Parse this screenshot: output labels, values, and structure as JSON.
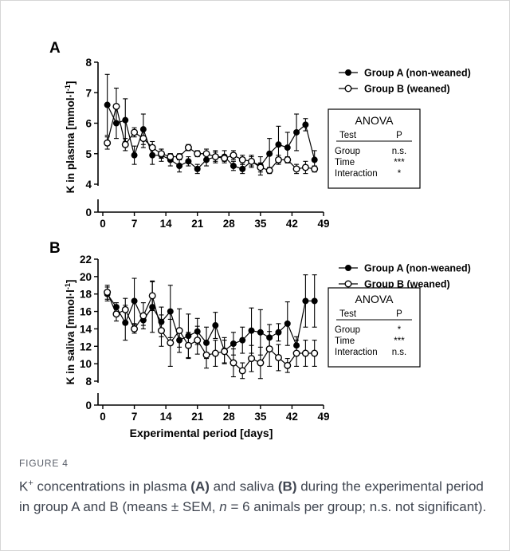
{
  "figure": {
    "label": "FIGURE 4",
    "caption_parts": {
      "k": "K",
      "sup": "+",
      "p1": " concentrations in plasma ",
      "a": "(A)",
      "p2": " and saliva ",
      "b": "(B)",
      "p3": " during the experimental period in group A and B (means ± SEM, ",
      "n": "n",
      "p4": " = 6 animals per group; n.s. not significant)."
    }
  },
  "chart_data": [
    {
      "panel_label": "A",
      "type": "line",
      "ylabel": "K in plasma [mmol·l⁻¹]",
      "ylabel_parts": [
        "K in plasma [mmol·l",
        "-1",
        "]"
      ],
      "xlabel": "",
      "xticks": [
        0,
        7,
        14,
        21,
        28,
        35,
        42,
        49
      ],
      "yticks": [
        0,
        4,
        5,
        6,
        7,
        8
      ],
      "xlim": [
        0,
        49
      ],
      "ylim_break": [
        0,
        4
      ],
      "ylim_upper": [
        4,
        8
      ],
      "axis_break": true,
      "legend": {
        "position": "top-right"
      },
      "series": [
        {
          "name": "Group A (non-weaned)",
          "marker": "filled-circle",
          "x": [
            1,
            3,
            5,
            7,
            9,
            11,
            13,
            15,
            17,
            19,
            21,
            23,
            25,
            27,
            29,
            31,
            33,
            35,
            37,
            39,
            41,
            43,
            45,
            47
          ],
          "y": [
            6.6,
            6.0,
            6.1,
            4.95,
            5.8,
            4.95,
            4.95,
            4.8,
            4.6,
            4.75,
            4.5,
            4.8,
            4.9,
            4.9,
            4.6,
            4.5,
            4.75,
            4.6,
            5.0,
            5.3,
            5.2,
            5.7,
            5.95,
            4.8
          ],
          "err": [
            1.0,
            0.5,
            0.7,
            0.3,
            0.5,
            0.3,
            0.2,
            0.2,
            0.2,
            0.15,
            0.15,
            0.2,
            0.2,
            0.2,
            0.15,
            0.15,
            0.2,
            0.3,
            0.5,
            0.6,
            0.5,
            0.6,
            0.2,
            0.3
          ]
        },
        {
          "name": "Group B (weaned)",
          "marker": "open-circle",
          "x": [
            1,
            3,
            5,
            7,
            9,
            11,
            13,
            15,
            17,
            19,
            21,
            23,
            25,
            27,
            29,
            31,
            33,
            35,
            37,
            39,
            41,
            43,
            45,
            47
          ],
          "y": [
            5.35,
            6.55,
            5.3,
            5.7,
            5.5,
            5.2,
            5.0,
            4.9,
            4.9,
            5.2,
            5.0,
            5.0,
            4.9,
            4.85,
            4.95,
            4.8,
            4.75,
            4.55,
            4.45,
            4.8,
            4.8,
            4.5,
            4.55,
            4.5
          ],
          "err": [
            0.2,
            0.6,
            0.2,
            0.15,
            0.3,
            0.2,
            0.15,
            0.1,
            0.1,
            0.1,
            0.1,
            0.15,
            0.15,
            0.1,
            0.15,
            0.15,
            0.15,
            0.15,
            0.1,
            0.15,
            0.1,
            0.15,
            0.2,
            0.1
          ]
        }
      ],
      "anova": {
        "title": "ANOVA",
        "col_test": "Test",
        "col_p": "P",
        "rows": [
          {
            "test": "Group",
            "p": "n.s."
          },
          {
            "test": "Time",
            "p": "***"
          },
          {
            "test": "Interaction",
            "p": "*"
          }
        ]
      }
    },
    {
      "panel_label": "B",
      "type": "line",
      "ylabel": "K in saliva [mmol·l⁻¹]",
      "ylabel_parts": [
        "K in saliva [mmol·l",
        "-1",
        "]"
      ],
      "xlabel": "Experimental period [days]",
      "xticks": [
        0,
        7,
        14,
        21,
        28,
        35,
        42,
        49
      ],
      "yticks": [
        0,
        8,
        10,
        12,
        14,
        16,
        18,
        20,
        22
      ],
      "xlim": [
        0,
        49
      ],
      "ylim_break": [
        0,
        8
      ],
      "ylim_upper": [
        8,
        22
      ],
      "axis_break": true,
      "legend": {
        "position": "top-right"
      },
      "series": [
        {
          "name": "Group A (non-weaned)",
          "marker": "filled-circle",
          "x": [
            1,
            3,
            5,
            7,
            9,
            11,
            13,
            15,
            17,
            19,
            21,
            23,
            25,
            27,
            29,
            31,
            33,
            35,
            37,
            39,
            41,
            43,
            45,
            47
          ],
          "y": [
            18.0,
            16.5,
            14.7,
            17.2,
            15.0,
            16.5,
            14.8,
            16.0,
            12.7,
            13.2,
            13.7,
            12.4,
            14.4,
            11.5,
            12.3,
            12.7,
            13.8,
            13.6,
            13.0,
            13.6,
            14.6,
            12.1,
            17.2,
            17.2
          ],
          "err": [
            0.8,
            0.5,
            2.0,
            2.6,
            0.6,
            2.9,
            1.7,
            3.0,
            0.8,
            2.5,
            1.5,
            1.8,
            1.5,
            1.5,
            1.3,
            1.5,
            2.6,
            2.6,
            1.5,
            1.0,
            2.5,
            1.0,
            3.0,
            3.0
          ]
        },
        {
          "name": "Group B (weaned)",
          "marker": "open-circle",
          "x": [
            1,
            3,
            5,
            7,
            9,
            11,
            13,
            15,
            17,
            19,
            21,
            23,
            25,
            27,
            29,
            31,
            33,
            35,
            37,
            39,
            41,
            43,
            45,
            47
          ],
          "y": [
            18.2,
            15.7,
            16.2,
            14.0,
            15.5,
            17.8,
            13.8,
            12.4,
            13.8,
            12.1,
            12.7,
            11.0,
            11.2,
            11.4,
            10.1,
            9.2,
            10.6,
            10.1,
            11.7,
            10.7,
            9.8,
            11.2,
            11.2,
            11.2
          ],
          "err": [
            0.8,
            0.8,
            1.3,
            0.5,
            1.5,
            1.7,
            1.8,
            2.7,
            2.5,
            1.5,
            1.6,
            1.5,
            1.5,
            1.3,
            1.6,
            0.9,
            1.5,
            1.8,
            2.0,
            1.5,
            0.8,
            1.5,
            1.5,
            1.5
          ]
        }
      ],
      "anova": {
        "title": "ANOVA",
        "col_test": "Test",
        "col_p": "P",
        "rows": [
          {
            "test": "Group",
            "p": "*"
          },
          {
            "test": "Time",
            "p": "***"
          },
          {
            "test": "Interaction",
            "p": "n.s."
          }
        ]
      }
    }
  ]
}
